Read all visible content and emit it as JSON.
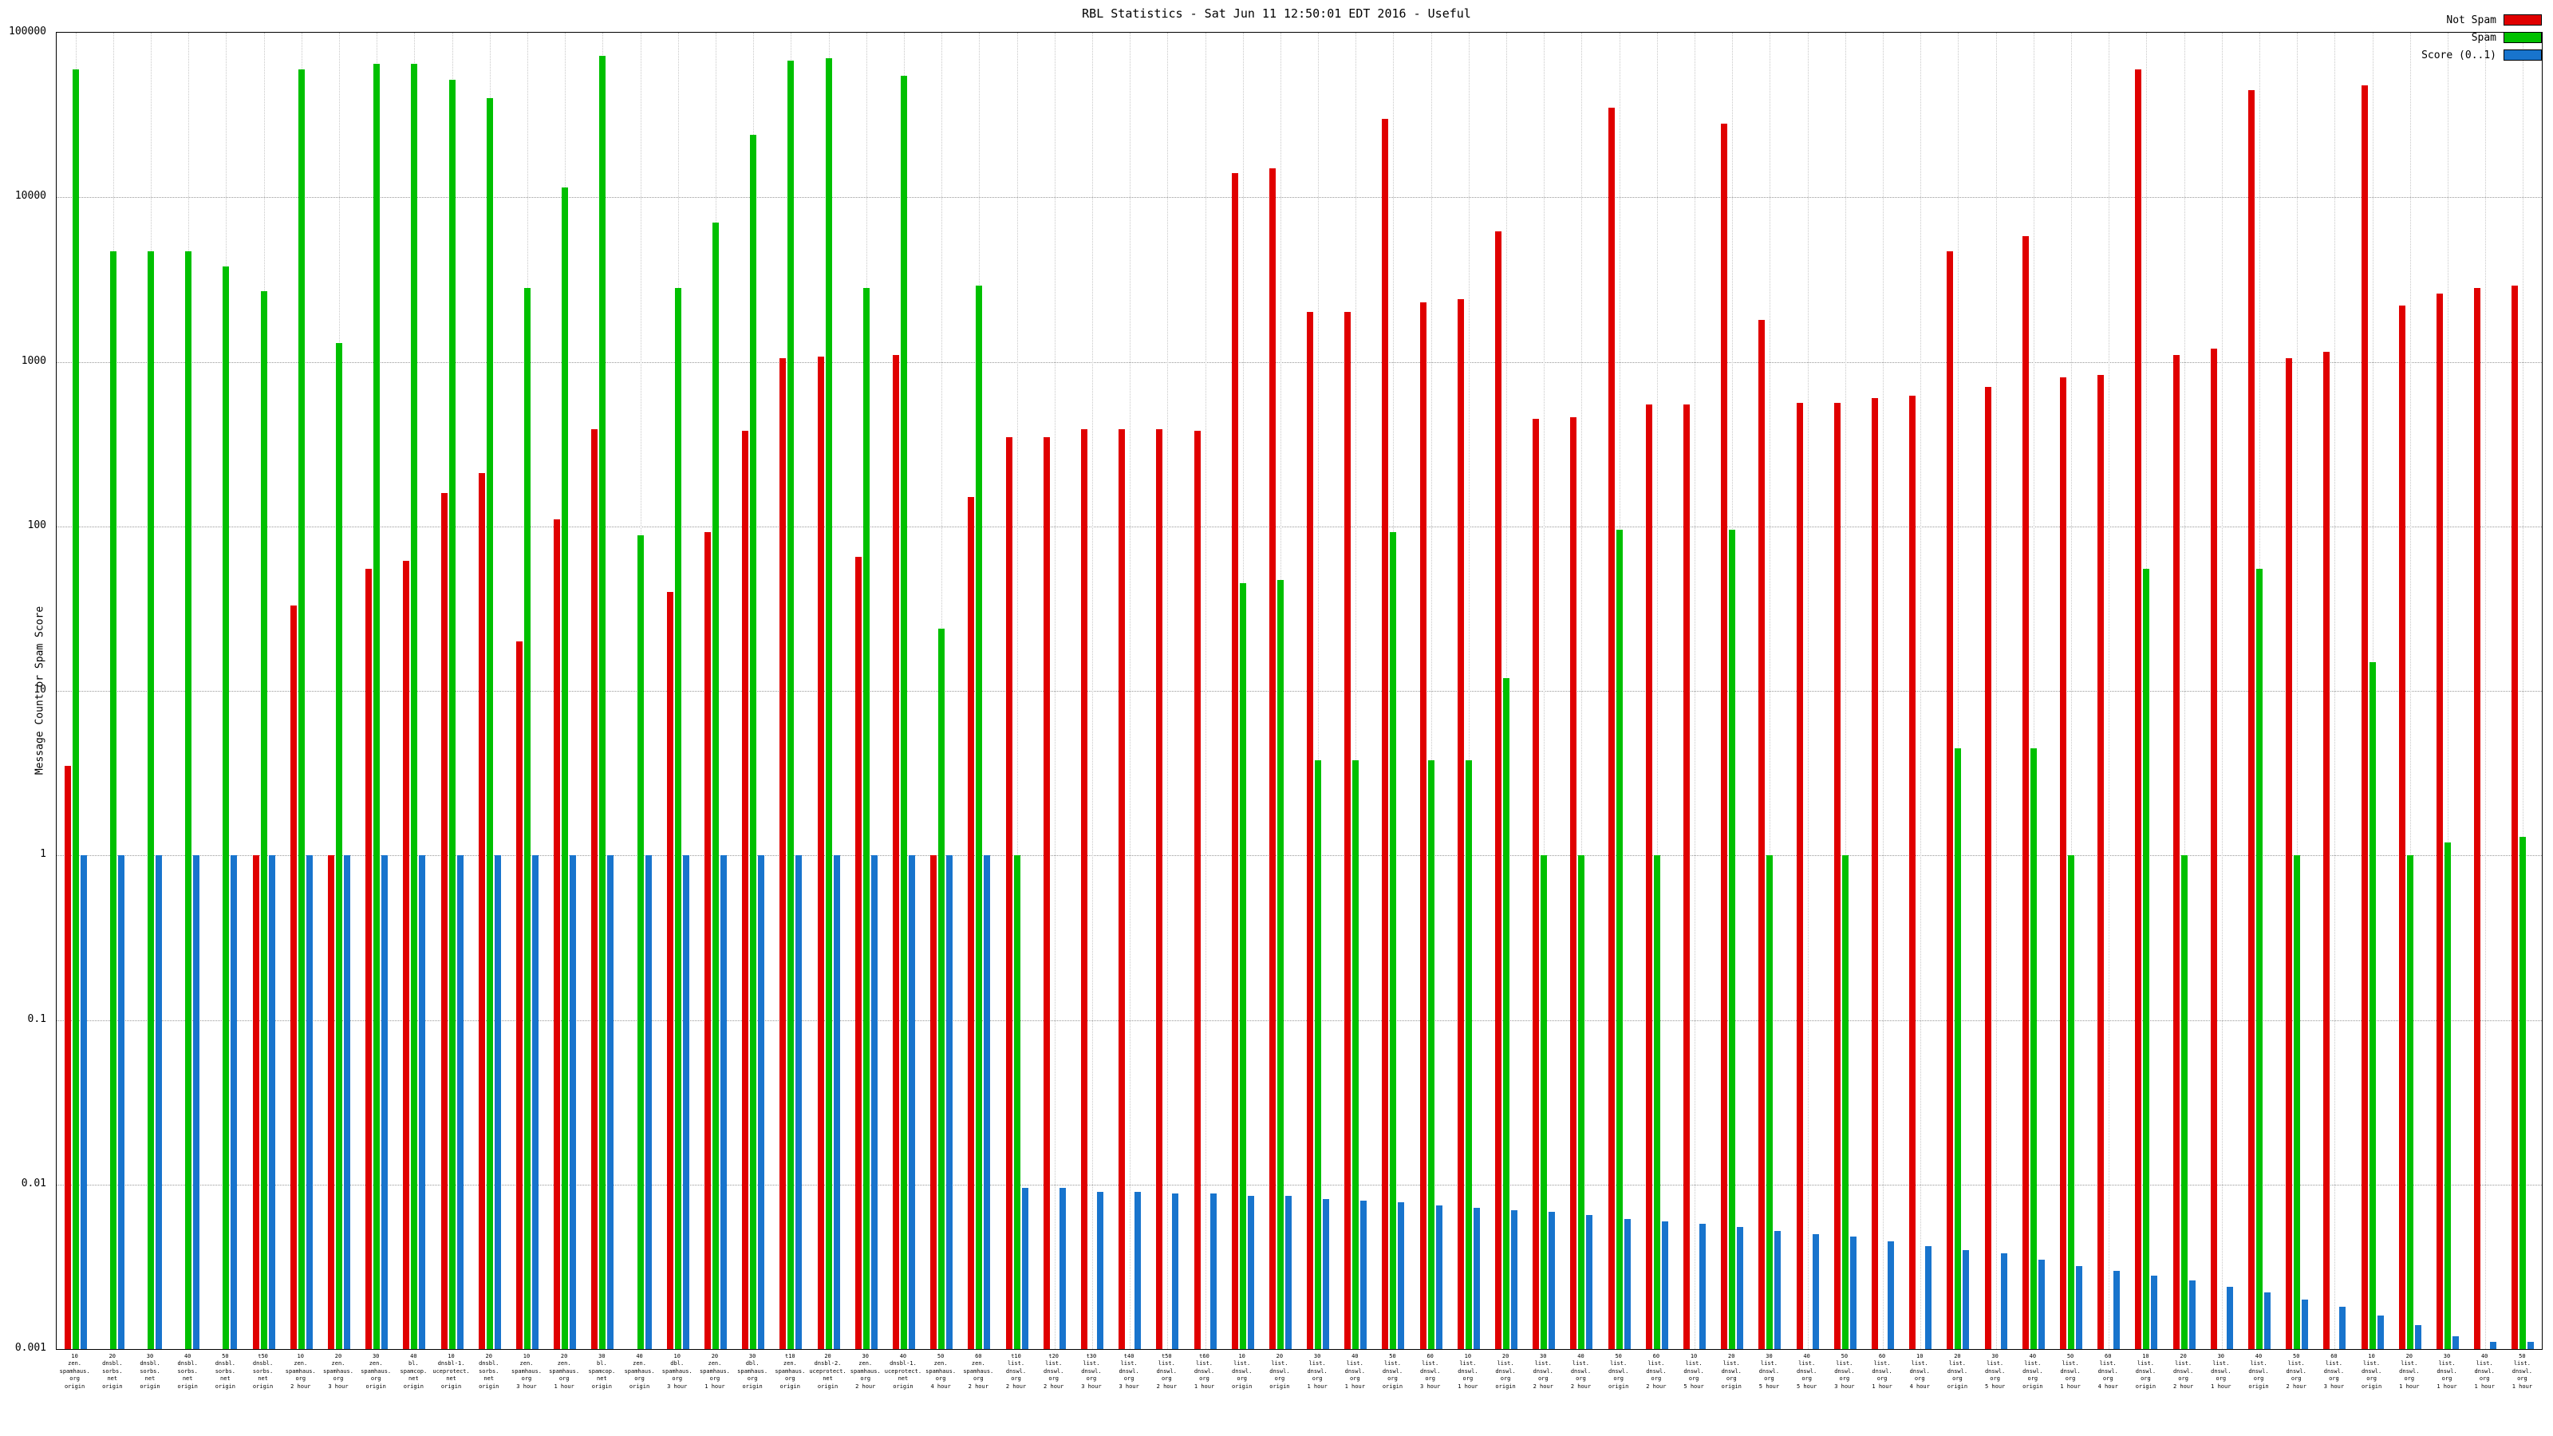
{
  "chart_data": {
    "type": "bar",
    "title": "RBL Statistics - Sat Jun 11 12:50:01 EDT 2016 - Useful",
    "ylabel": "Message Count or Spam Score",
    "xlabel": "",
    "y_scale": "log",
    "ylim": [
      0.001,
      100000
    ],
    "grid": true,
    "legend_position": "top-right",
    "y_ticks": [
      {
        "value": 100000,
        "label": "100000"
      },
      {
        "value": 10000,
        "label": "10000"
      },
      {
        "value": 1000,
        "label": "1000"
      },
      {
        "value": 100,
        "label": "100"
      },
      {
        "value": 10,
        "label": "10"
      },
      {
        "value": 1,
        "label": "1"
      },
      {
        "value": 0.1,
        "label": "0.1"
      },
      {
        "value": 0.01,
        "label": "0.01"
      },
      {
        "value": 0.001,
        "label": "0.001"
      }
    ],
    "legend": [
      {
        "name": "Not Spam",
        "color": "#e00000"
      },
      {
        "name": "Spam",
        "color": "#00c000"
      },
      {
        "name": "Score (0..1)",
        "color": "#1874cd"
      }
    ],
    "categories": [
      [
        "10",
        "zen.",
        "spamhaus.",
        "org",
        "origin"
      ],
      [
        "20",
        "dnsbl.",
        "sorbs.",
        "net",
        "origin"
      ],
      [
        "30",
        "dnsbl.",
        "sorbs.",
        "net",
        "origin"
      ],
      [
        "40",
        "dnsbl.",
        "sorbs.",
        "net",
        "origin"
      ],
      [
        "50",
        "dnsbl.",
        "sorbs.",
        "net",
        "origin"
      ],
      [
        "t50",
        "dnsbl.",
        "sorbs.",
        "net",
        "origin"
      ],
      [
        "10",
        "zen.",
        "spamhaus.",
        "org",
        "2 hour"
      ],
      [
        "20",
        "zen.",
        "spamhaus.",
        "org",
        "3 hour"
      ],
      [
        "30",
        "zen.",
        "spamhaus.",
        "org",
        "origin"
      ],
      [
        "40",
        "bl.",
        "spamcop.",
        "net",
        "origin"
      ],
      [
        "10",
        "dnsbl-1.",
        "uceprotect.",
        "net",
        "origin"
      ],
      [
        "20",
        "dnsbl.",
        "sorbs.",
        "net",
        "origin"
      ],
      [
        "10",
        "zen.",
        "spamhaus.",
        "org",
        "3 hour"
      ],
      [
        "20",
        "zen.",
        "spamhaus.",
        "org",
        "1 hour"
      ],
      [
        "30",
        "bl.",
        "spamcop.",
        "net",
        "origin"
      ],
      [
        "40",
        "zen.",
        "spamhaus.",
        "org",
        "origin"
      ],
      [
        "10",
        "dbl.",
        "spamhaus.",
        "org",
        "3 hour"
      ],
      [
        "20",
        "zen.",
        "spamhaus.",
        "org",
        "1 hour"
      ],
      [
        "30",
        "dbl.",
        "spamhaus.",
        "org",
        "origin"
      ],
      [
        "t10",
        "zen.",
        "spamhaus.",
        "org",
        "origin"
      ],
      [
        "20",
        "dnsbl-2.",
        "uceprotect.",
        "net",
        "origin"
      ],
      [
        "30",
        "zen.",
        "spamhaus.",
        "org",
        "2 hour"
      ],
      [
        "40",
        "dnsbl-1.",
        "uceprotect.",
        "net",
        "origin"
      ],
      [
        "50",
        "zen.",
        "spamhaus.",
        "org",
        "4 hour"
      ],
      [
        "60",
        "zen.",
        "spamhaus.",
        "org",
        "2 hour"
      ],
      [
        "t10",
        "list.",
        "dnswl.",
        "org",
        "2 hour"
      ],
      [
        "t20",
        "list.",
        "dnswl.",
        "org",
        "2 hour"
      ],
      [
        "t30",
        "list.",
        "dnswl.",
        "org",
        "3 hour"
      ],
      [
        "t40",
        "list.",
        "dnswl.",
        "org",
        "3 hour"
      ],
      [
        "t50",
        "list.",
        "dnswl.",
        "org",
        "2 hour"
      ],
      [
        "t60",
        "list.",
        "dnswl.",
        "org",
        "1 hour"
      ],
      [
        "10",
        "list.",
        "dnswl.",
        "org",
        "origin"
      ],
      [
        "20",
        "list.",
        "dnswl.",
        "org",
        "origin"
      ],
      [
        "30",
        "list.",
        "dnswl.",
        "org",
        "1 hour"
      ],
      [
        "40",
        "list.",
        "dnswl.",
        "org",
        "1 hour"
      ],
      [
        "50",
        "list.",
        "dnswl.",
        "org",
        "origin"
      ],
      [
        "60",
        "list.",
        "dnswl.",
        "org",
        "3 hour"
      ],
      [
        "10",
        "list.",
        "dnswl.",
        "org",
        "1 hour"
      ],
      [
        "20",
        "list.",
        "dnswl.",
        "org",
        "origin"
      ],
      [
        "30",
        "list.",
        "dnswl.",
        "org",
        "2 hour"
      ],
      [
        "40",
        "list.",
        "dnswl.",
        "org",
        "2 hour"
      ],
      [
        "50",
        "list.",
        "dnswl.",
        "org",
        "origin"
      ],
      [
        "60",
        "list.",
        "dnswl.",
        "org",
        "2 hour"
      ],
      [
        "10",
        "list.",
        "dnswl.",
        "org",
        "5 hour"
      ],
      [
        "20",
        "list.",
        "dnswl.",
        "org",
        "origin"
      ],
      [
        "30",
        "list.",
        "dnswl.",
        "org",
        "5 hour"
      ],
      [
        "40",
        "list.",
        "dnswl.",
        "org",
        "5 hour"
      ],
      [
        "50",
        "list.",
        "dnswl.",
        "org",
        "3 hour"
      ],
      [
        "60",
        "list.",
        "dnswl.",
        "org",
        "1 hour"
      ],
      [
        "10",
        "list.",
        "dnswl.",
        "org",
        "4 hour"
      ],
      [
        "20",
        "list.",
        "dnswl.",
        "org",
        "origin"
      ],
      [
        "30",
        "list.",
        "dnswl.",
        "org",
        "5 hour"
      ],
      [
        "40",
        "list.",
        "dnswl.",
        "org",
        "origin"
      ],
      [
        "50",
        "list.",
        "dnswl.",
        "org",
        "1 hour"
      ],
      [
        "60",
        "list.",
        "dnswl.",
        "org",
        "4 hour"
      ],
      [
        "10",
        "list.",
        "dnswl.",
        "org",
        "origin"
      ],
      [
        "20",
        "list.",
        "dnswl.",
        "org",
        "2 hour"
      ],
      [
        "30",
        "list.",
        "dnswl.",
        "org",
        "1 hour"
      ],
      [
        "40",
        "list.",
        "dnswl.",
        "org",
        "origin"
      ],
      [
        "50",
        "list.",
        "dnswl.",
        "org",
        "2 hour"
      ],
      [
        "60",
        "list.",
        "dnswl.",
        "org",
        "3 hour"
      ],
      [
        "10",
        "list.",
        "dnswl.",
        "org",
        "origin"
      ],
      [
        "20",
        "list.",
        "dnswl.",
        "org",
        "1 hour"
      ],
      [
        "30",
        "list.",
        "dnswl.",
        "org",
        "1 hour"
      ],
      [
        "40",
        "list.",
        "dnswl.",
        "org",
        "1 hour"
      ],
      [
        "50",
        "list.",
        "dnswl.",
        "org",
        "1 hour"
      ]
    ],
    "series": [
      {
        "name": "Not Spam",
        "key": "not-spam",
        "color": "#e00000",
        "values": [
          3.5,
          null,
          null,
          null,
          null,
          1,
          33,
          1,
          55,
          62,
          160,
          210,
          20,
          110,
          390,
          null,
          40,
          92,
          380,
          1050,
          1080,
          65,
          1100,
          1,
          150,
          350,
          350,
          390,
          390,
          390,
          380,
          14000,
          15000,
          2000,
          2000,
          30000,
          2300,
          2400,
          6200,
          450,
          460,
          35000,
          550,
          550,
          28000,
          1800,
          560,
          560,
          600,
          620,
          4700,
          700,
          5800,
          800,
          830,
          60000,
          1100,
          1200,
          45000,
          1050,
          1150,
          48000,
          2200,
          2600,
          2800,
          2900
        ]
      },
      {
        "name": "Spam",
        "key": "spam",
        "color": "#00c000",
        "values": [
          60000,
          4700,
          4700,
          4700,
          3800,
          2700,
          60000,
          1300,
          65000,
          65000,
          52000,
          40000,
          2800,
          11500,
          72000,
          88,
          2800,
          7000,
          24000,
          68000,
          70000,
          2800,
          55000,
          24,
          2900,
          1,
          null,
          null,
          null,
          null,
          null,
          45,
          47,
          3.8,
          3.8,
          92,
          3.8,
          3.8,
          12,
          1,
          1,
          95,
          1,
          null,
          95,
          1,
          null,
          1,
          null,
          null,
          4.5,
          null,
          4.5,
          1,
          null,
          55,
          1,
          null,
          55,
          1,
          null,
          15,
          1,
          1.2,
          null,
          1.3
        ]
      },
      {
        "name": "Score (0..1)",
        "key": "score",
        "color": "#1874cd",
        "values": [
          1,
          1,
          1,
          1,
          1,
          1,
          1,
          1,
          1,
          1,
          1,
          1,
          1,
          1,
          1,
          1,
          1,
          1,
          1,
          1,
          1,
          1,
          1,
          1,
          1,
          0.0095,
          0.0095,
          0.009,
          0.009,
          0.0088,
          0.0088,
          0.0085,
          0.0085,
          0.0082,
          0.008,
          0.0078,
          0.0075,
          0.0072,
          0.007,
          0.0068,
          0.0065,
          0.0062,
          0.006,
          0.0058,
          0.0055,
          0.0052,
          0.005,
          0.0048,
          0.0045,
          0.0042,
          0.004,
          0.0038,
          0.0035,
          0.0032,
          0.003,
          0.0028,
          0.0026,
          0.0024,
          0.0022,
          0.002,
          0.0018,
          0.0016,
          0.0014,
          0.0012,
          0.0011,
          0.0011
        ]
      }
    ]
  }
}
